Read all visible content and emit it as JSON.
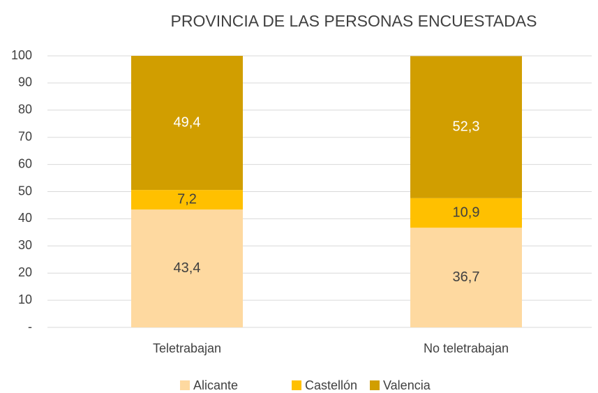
{
  "chart_data": {
    "type": "stacked_bar",
    "title": "PROVINCIA DE LAS PERSONAS ENCUESTADAS",
    "categories": [
      "Teletrabajan",
      "No teletrabajan"
    ],
    "series": [
      {
        "name": "Alicante",
        "color": "#fed9a0",
        "values": [
          43.4,
          36.7
        ],
        "value_labels": [
          "43,4",
          "36,7"
        ]
      },
      {
        "name": "Castellón",
        "color": "#ffc000",
        "values": [
          7.2,
          10.9
        ],
        "value_labels": [
          "7,2",
          "10,9"
        ]
      },
      {
        "name": "Valencia",
        "color": "#d19e00",
        "values": [
          49.4,
          52.3
        ],
        "value_labels": [
          "49,4",
          "52,3"
        ]
      }
    ],
    "ylim": [
      0,
      100
    ],
    "yticks": [
      {
        "value": 0,
        "label": "-"
      },
      10,
      20,
      30,
      40,
      50,
      60,
      70,
      80,
      90,
      100
    ],
    "grid": true,
    "legend": "bottom"
  }
}
